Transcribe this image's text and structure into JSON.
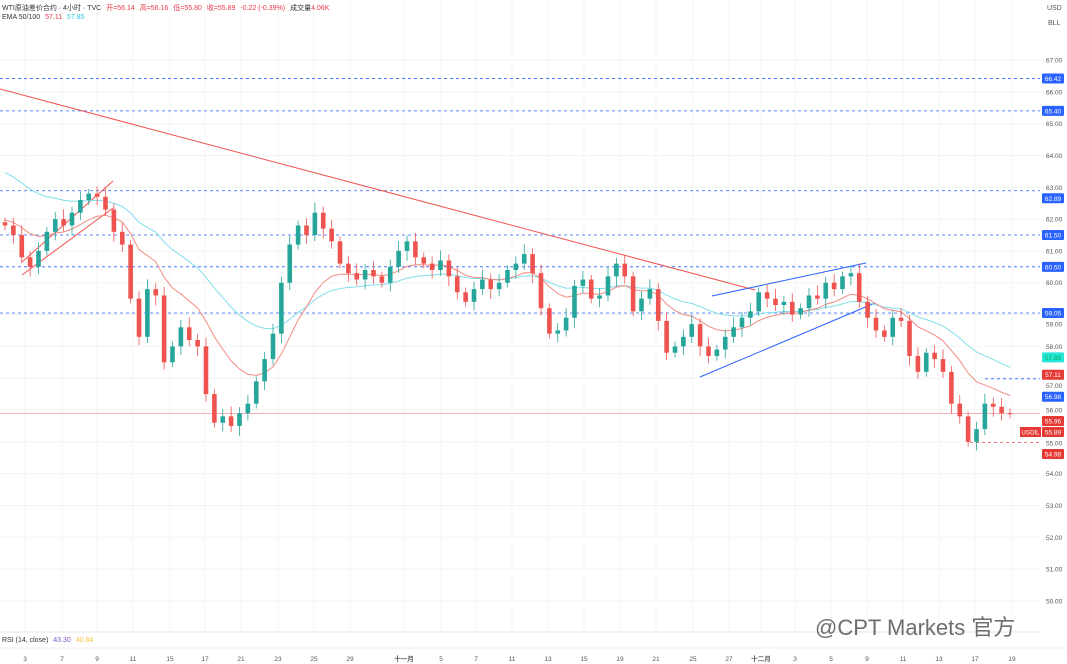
{
  "header": {
    "symbol": "WTI原油差价合约 · 4小时 · TVC",
    "open": "开=56.14",
    "high": "高=56.16",
    "low": "低=55.80",
    "close": "收=55.89",
    "change": "-0.22 (-0.39%)",
    "volume_label": "成交量",
    "volume": "4.06K",
    "ema_label": "EMA 50/100",
    "ema50": "57.11",
    "ema100": "57.85"
  },
  "axis_units": {
    "currency": "USD",
    "unit": "BLL"
  },
  "rsi": {
    "label": "RSI (14, close)",
    "value": "43.30",
    "ma": "40.84"
  },
  "watermark": "@CPT Markets 官方",
  "colors": {
    "up": "#26a69a",
    "down": "#ef5350",
    "ema50": "#f28b82",
    "ema100": "#80deea",
    "level": "#2962ff",
    "trend_red": "#ef5350",
    "wedge": "#2962ff"
  },
  "chart_data": {
    "type": "candlestick",
    "title": "WTI原油差价合约 4小时",
    "ylim": [
      49.5,
      67.5
    ],
    "y_ticks": [
      "67.00",
      "66.00",
      "65.00",
      "64.00",
      "63.00",
      "62.00",
      "61.00",
      "60.00",
      "59.00",
      "58.00",
      "57.00",
      "56.00",
      "55.00",
      "54.00",
      "53.00",
      "52.00",
      "51.00",
      "50.00"
    ],
    "x_ticks": [
      "3",
      "7",
      "9",
      "11",
      "15",
      "17",
      "21",
      "23",
      "25",
      "29",
      "十一月",
      "5",
      "7",
      "11",
      "13",
      "15",
      "19",
      "21",
      "25",
      "27",
      "十二月",
      "3",
      "5",
      "9",
      "11",
      "13",
      "17",
      "19"
    ],
    "closes": [
      61.8,
      61.5,
      60.8,
      60.5,
      61.0,
      61.6,
      62.0,
      61.8,
      62.2,
      62.6,
      62.8,
      62.7,
      62.3,
      61.6,
      61.2,
      59.5,
      58.3,
      59.8,
      59.6,
      57.5,
      58.0,
      58.6,
      58.2,
      58.0,
      56.5,
      55.6,
      55.8,
      55.5,
      55.9,
      56.2,
      56.9,
      57.6,
      58.4,
      60.0,
      61.2,
      61.8,
      61.5,
      62.2,
      61.7,
      61.3,
      60.6,
      60.3,
      60.1,
      60.4,
      60.2,
      60.0,
      60.5,
      61.0,
      61.3,
      60.8,
      60.6,
      60.4,
      60.7,
      60.2,
      59.7,
      59.4,
      59.8,
      60.1,
      59.8,
      60.0,
      60.4,
      60.6,
      60.9,
      60.3,
      59.2,
      58.4,
      58.5,
      58.9,
      59.9,
      60.1,
      59.5,
      59.6,
      60.2,
      60.6,
      60.2,
      59.1,
      59.5,
      59.8,
      58.8,
      57.8,
      58.0,
      58.3,
      58.7,
      58.0,
      57.7,
      57.9,
      58.3,
      58.6,
      58.9,
      59.1,
      59.7,
      59.5,
      59.3,
      59.4,
      59.0,
      59.2,
      59.6,
      59.5,
      60.0,
      59.8,
      60.2,
      60.3,
      59.4,
      58.9,
      58.5,
      58.3,
      58.9,
      58.8,
      57.7,
      57.2,
      57.8,
      57.6,
      57.2,
      56.2,
      55.8,
      55.0,
      55.4,
      56.2,
      56.1,
      55.9,
      55.89
    ],
    "levels": [
      {
        "price": 66.42,
        "label": "66.42",
        "kind": "blue"
      },
      {
        "price": 65.4,
        "label": "65.40",
        "kind": "blue"
      },
      {
        "price": 62.89,
        "label": "62.89",
        "kind": "blue"
      },
      {
        "price": 61.5,
        "label": "61.50",
        "kind": "blue"
      },
      {
        "price": 60.5,
        "label": "60.50",
        "kind": "blue"
      },
      {
        "price": 59.05,
        "label": "59.05",
        "kind": "blue"
      },
      {
        "price": 56.98,
        "label": "56.98",
        "kind": "blue-short"
      },
      {
        "price": 54.98,
        "label": "54.98",
        "kind": "red-short"
      }
    ],
    "price_tags": [
      {
        "price": 57.85,
        "label": "57.85",
        "color": "#26e6da",
        "text": "#0a5"
      },
      {
        "price": 57.11,
        "label": "57.11",
        "color": "#e53935",
        "text": "#fff"
      },
      {
        "price": 55.96,
        "label": "55.96",
        "color": "#e53935",
        "text": "#fff"
      }
    ],
    "last": {
      "symbol": "USOIL",
      "price": 55.89,
      "label": "55.89"
    }
  }
}
